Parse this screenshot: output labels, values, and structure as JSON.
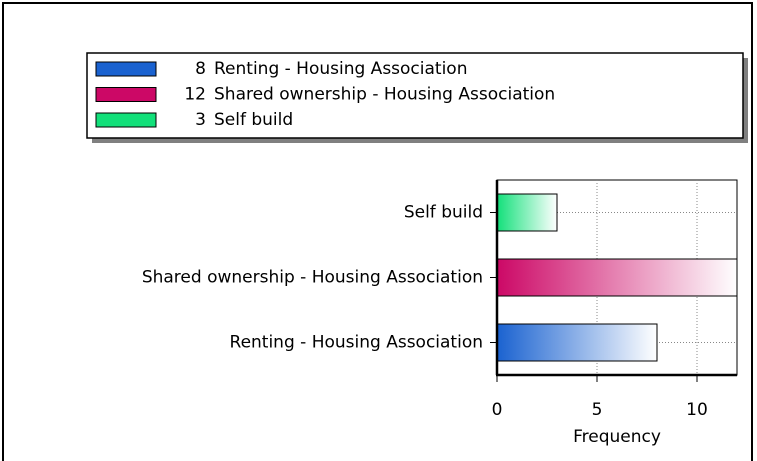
{
  "chart_data": {
    "type": "bar",
    "orientation": "horizontal",
    "categories": [
      "Renting - Housing Association",
      "Shared ownership - Housing Association",
      "Self build"
    ],
    "values": [
      8,
      12,
      3
    ],
    "colors": [
      "#1a62d0",
      "#cc0866",
      "#12e07a"
    ],
    "xlabel": "Frequency",
    "xlim": [
      0,
      12
    ],
    "xticks": [
      0,
      5,
      10
    ],
    "grid": true
  }
}
